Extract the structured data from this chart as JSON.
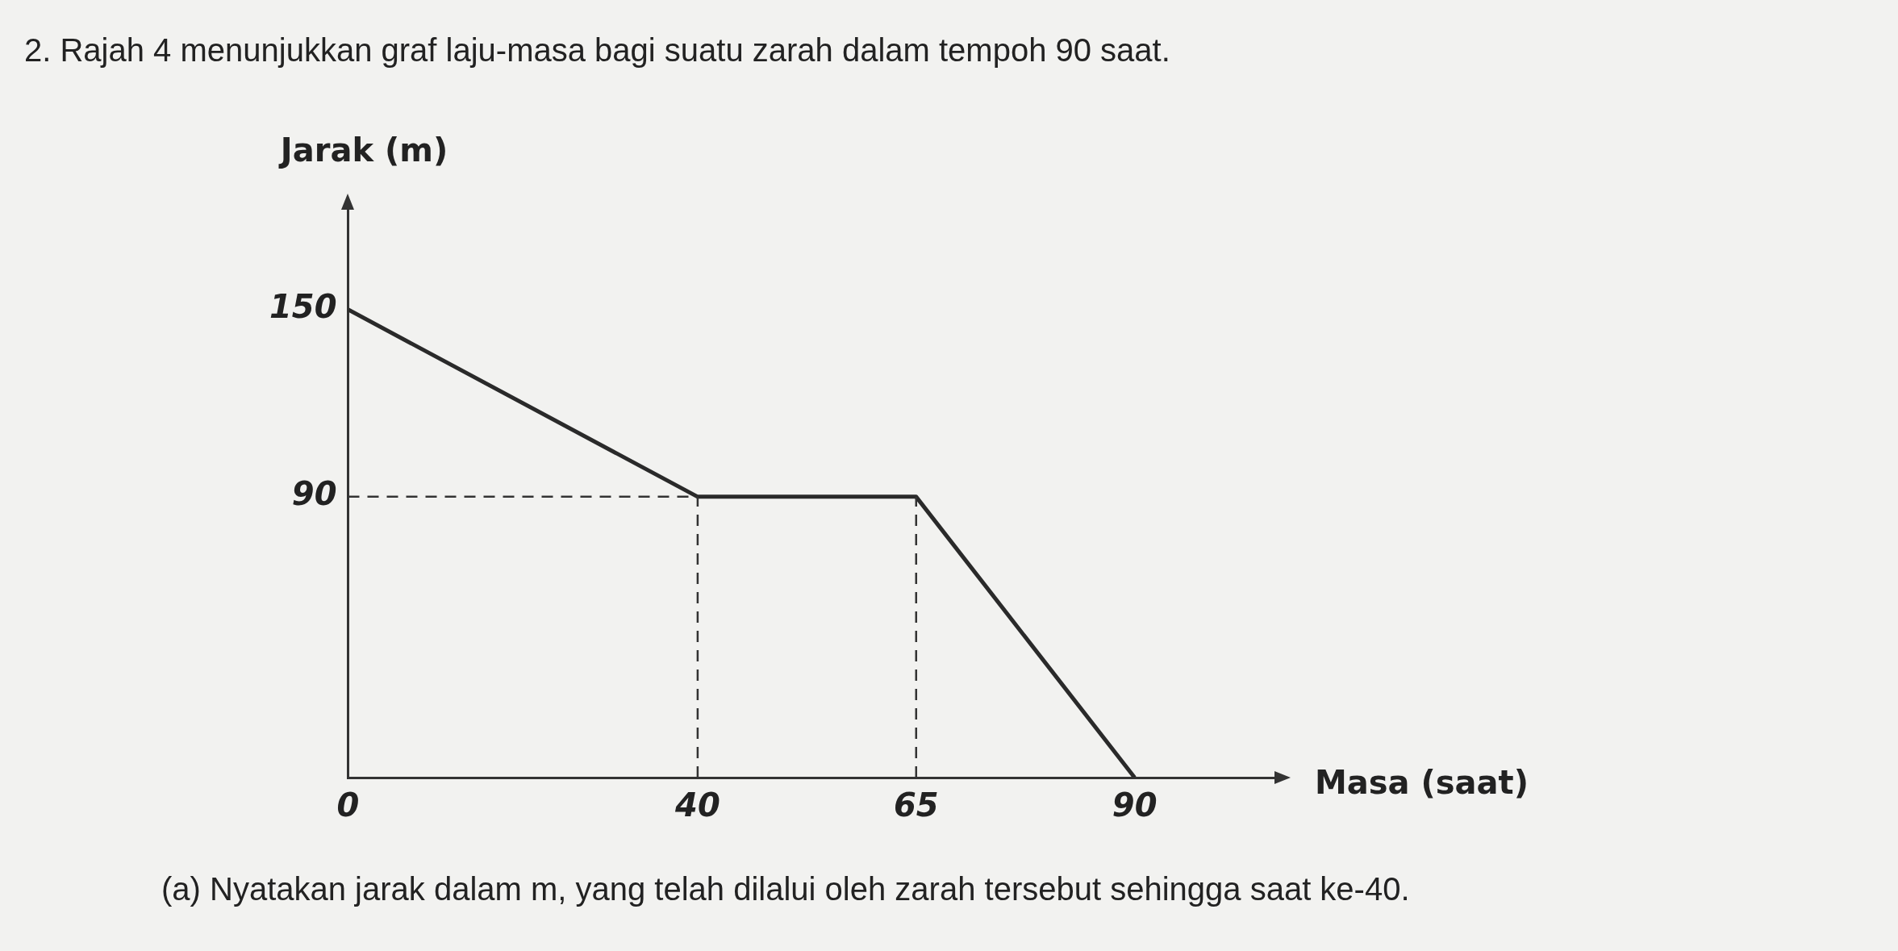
{
  "chart_data": {
    "type": "line",
    "title": "2. Rajah 4 menunjukkan graf laju-masa bagi suatu zarah dalam tempoh 90 saat.",
    "xlabel": "Masa (saat)",
    "ylabel": "Jarak (m)",
    "x": [
      0,
      40,
      65,
      90
    ],
    "series": [
      {
        "color": "#2a2a2a",
        "values": [
          150,
          90,
          90,
          0
        ]
      }
    ],
    "xlim": [
      0,
      106
    ],
    "ylim": [
      0,
      182
    ],
    "xticks": [
      0,
      40,
      65,
      90
    ],
    "yticks": [
      90,
      150
    ],
    "grid": false,
    "legend": false,
    "marker": "none",
    "line_style": "solid",
    "ref_lines": [
      {
        "axis": "y",
        "value": 90,
        "line_style": "dashed"
      },
      {
        "axis": "x",
        "value": 40,
        "line_style": "dashed"
      },
      {
        "axis": "x",
        "value": 65,
        "line_style": "dashed"
      }
    ],
    "annotations": [
      "(a) Nyatakan jarak dalam m, yang telah dilalui oleh zarah tersebut sehingga saat ke-40."
    ]
  }
}
